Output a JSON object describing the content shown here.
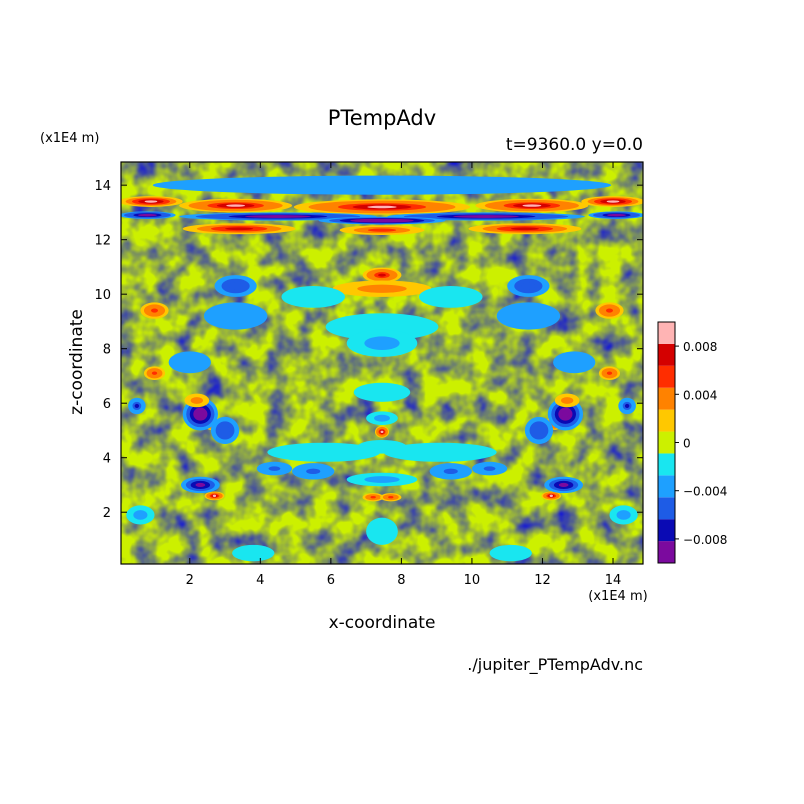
{
  "chart_data": {
    "type": "heatmap",
    "title": "PTempAdv",
    "subtitle": "t=9360.0 y=0.0",
    "xlabel": "x-coordinate",
    "ylabel": "z-coordinate",
    "x_unit": "(x1E4 m)",
    "y_unit": "(x1E4 m)",
    "xlim": [
      0.05,
      14.85
    ],
    "ylim": [
      0.1,
      14.85
    ],
    "x_ticks": [
      2,
      4,
      6,
      8,
      10,
      12,
      14
    ],
    "y_ticks": [
      2,
      4,
      6,
      8,
      10,
      12,
      14
    ],
    "colorbar": {
      "levels": [
        -0.01,
        -0.008,
        -0.006,
        -0.004,
        -0.002,
        0,
        0.002,
        0.004,
        0.006,
        0.008,
        0.01
      ],
      "colors": [
        "#7b0a9e",
        "#0a0ab4",
        "#1e5ce6",
        "#1ea0ff",
        "#19e6f0",
        "#ccf000",
        "#ffc800",
        "#ff8200",
        "#ff2d00",
        "#d40000",
        "#ffb4b4"
      ],
      "tick_values": [
        0.008,
        0.004,
        0,
        -0.004,
        -0.008
      ],
      "tick_labels": [
        "0.008",
        "0.004",
        "0",
        "−0.004",
        "−0.008"
      ]
    },
    "features": [
      {
        "x": 7.45,
        "z": 13.2,
        "sx": 2.5,
        "sz": 0.28,
        "v": 0.011
      },
      {
        "x": 3.3,
        "z": 13.25,
        "sx": 1.6,
        "sz": 0.25,
        "v": 0.011
      },
      {
        "x": 11.7,
        "z": 13.25,
        "sx": 1.6,
        "sz": 0.25,
        "v": 0.011
      },
      {
        "x": 0.9,
        "z": 13.4,
        "sx": 0.9,
        "sz": 0.2,
        "v": 0.01
      },
      {
        "x": 14.0,
        "z": 13.4,
        "sx": 0.9,
        "sz": 0.2,
        "v": 0.01
      },
      {
        "x": 7.45,
        "z": 14.0,
        "sx": 6.5,
        "sz": 0.35,
        "v": -0.004
      },
      {
        "x": 4.5,
        "z": 12.85,
        "sx": 2.8,
        "sz": 0.15,
        "v": -0.011
      },
      {
        "x": 10.4,
        "z": 12.85,
        "sx": 2.8,
        "sz": 0.15,
        "v": -0.011
      },
      {
        "x": 7.45,
        "z": 12.7,
        "sx": 1.8,
        "sz": 0.14,
        "v": -0.012
      },
      {
        "x": 0.8,
        "z": 12.9,
        "sx": 0.8,
        "sz": 0.14,
        "v": -0.011
      },
      {
        "x": 14.1,
        "z": 12.9,
        "sx": 0.8,
        "sz": 0.14,
        "v": -0.011
      },
      {
        "x": 3.4,
        "z": 12.4,
        "sx": 1.6,
        "sz": 0.2,
        "v": 0.008
      },
      {
        "x": 11.5,
        "z": 12.4,
        "sx": 1.6,
        "sz": 0.2,
        "v": 0.008
      },
      {
        "x": 7.45,
        "z": 12.35,
        "sx": 1.2,
        "sz": 0.18,
        "v": 0.006
      },
      {
        "x": 7.45,
        "z": 10.7,
        "sx": 0.55,
        "sz": 0.28,
        "v": 0.009
      },
      {
        "x": 7.45,
        "z": 10.2,
        "sx": 1.4,
        "sz": 0.3,
        "v": 0.004
      },
      {
        "x": 5.5,
        "z": 9.9,
        "sx": 0.9,
        "sz": 0.4,
        "v": -0.002
      },
      {
        "x": 9.4,
        "z": 9.9,
        "sx": 0.9,
        "sz": 0.4,
        "v": -0.002
      },
      {
        "x": 3.3,
        "z": 10.3,
        "sx": 0.6,
        "sz": 0.4,
        "v": -0.006
      },
      {
        "x": 11.6,
        "z": 10.3,
        "sx": 0.6,
        "sz": 0.4,
        "v": -0.006
      },
      {
        "x": 1.0,
        "z": 9.4,
        "sx": 0.4,
        "sz": 0.3,
        "v": 0.007
      },
      {
        "x": 13.9,
        "z": 9.4,
        "sx": 0.4,
        "sz": 0.3,
        "v": 0.007
      },
      {
        "x": 3.3,
        "z": 9.2,
        "sx": 0.9,
        "sz": 0.5,
        "v": -0.004
      },
      {
        "x": 11.6,
        "z": 9.2,
        "sx": 0.9,
        "sz": 0.5,
        "v": -0.004
      },
      {
        "x": 7.45,
        "z": 8.8,
        "sx": 1.6,
        "sz": 0.5,
        "v": -0.002
      },
      {
        "x": 7.45,
        "z": 8.2,
        "sx": 1.0,
        "sz": 0.5,
        "v": -0.003
      },
      {
        "x": 2.0,
        "z": 7.5,
        "sx": 0.6,
        "sz": 0.4,
        "v": -0.004
      },
      {
        "x": 12.9,
        "z": 7.5,
        "sx": 0.6,
        "sz": 0.4,
        "v": -0.004
      },
      {
        "x": 1.0,
        "z": 7.1,
        "sx": 0.3,
        "sz": 0.25,
        "v": 0.007
      },
      {
        "x": 13.9,
        "z": 7.1,
        "sx": 0.3,
        "sz": 0.25,
        "v": 0.007
      },
      {
        "x": 2.6,
        "z": 5.3,
        "sx": 0.22,
        "sz": 0.28,
        "v": 0.011
      },
      {
        "x": 12.35,
        "z": 5.3,
        "sx": 0.22,
        "sz": 0.28,
        "v": 0.011
      },
      {
        "x": 2.3,
        "z": 5.6,
        "sx": 0.5,
        "sz": 0.6,
        "v": -0.01
      },
      {
        "x": 12.65,
        "z": 5.6,
        "sx": 0.5,
        "sz": 0.6,
        "v": -0.01
      },
      {
        "x": 3.0,
        "z": 5.0,
        "sx": 0.4,
        "sz": 0.5,
        "v": -0.006
      },
      {
        "x": 11.9,
        "z": 5.0,
        "sx": 0.4,
        "sz": 0.5,
        "v": -0.006
      },
      {
        "x": 2.2,
        "z": 6.1,
        "sx": 0.35,
        "sz": 0.25,
        "v": 0.004
      },
      {
        "x": 12.7,
        "z": 6.1,
        "sx": 0.35,
        "sz": 0.25,
        "v": 0.004
      },
      {
        "x": 0.5,
        "z": 5.9,
        "sx": 0.25,
        "sz": 0.3,
        "v": -0.007
      },
      {
        "x": 14.4,
        "z": 5.9,
        "sx": 0.25,
        "sz": 0.3,
        "v": -0.007
      },
      {
        "x": 7.45,
        "z": 4.95,
        "sx": 0.2,
        "sz": 0.22,
        "v": 0.011
      },
      {
        "x": 7.45,
        "z": 5.45,
        "sx": 0.45,
        "sz": 0.25,
        "v": -0.003
      },
      {
        "x": 7.45,
        "z": 4.4,
        "sx": 0.7,
        "sz": 0.25,
        "v": -0.002
      },
      {
        "x": 5.8,
        "z": 4.2,
        "sx": 1.6,
        "sz": 0.35,
        "v": -0.002
      },
      {
        "x": 9.1,
        "z": 4.2,
        "sx": 1.6,
        "sz": 0.35,
        "v": -0.002
      },
      {
        "x": 7.45,
        "z": 6.4,
        "sx": 0.8,
        "sz": 0.35,
        "v": -0.002
      },
      {
        "x": 4.4,
        "z": 3.6,
        "sx": 0.5,
        "sz": 0.25,
        "v": -0.005
      },
      {
        "x": 10.5,
        "z": 3.6,
        "sx": 0.5,
        "sz": 0.25,
        "v": -0.005
      },
      {
        "x": 5.5,
        "z": 3.5,
        "sx": 0.6,
        "sz": 0.3,
        "v": -0.005
      },
      {
        "x": 9.4,
        "z": 3.5,
        "sx": 0.6,
        "sz": 0.3,
        "v": -0.005
      },
      {
        "x": 7.45,
        "z": 3.2,
        "sx": 1.0,
        "sz": 0.25,
        "v": -0.003
      },
      {
        "x": 7.2,
        "z": 2.55,
        "sx": 0.3,
        "sz": 0.15,
        "v": 0.007
      },
      {
        "x": 7.7,
        "z": 2.55,
        "sx": 0.3,
        "sz": 0.15,
        "v": 0.007
      },
      {
        "x": 2.7,
        "z": 2.6,
        "sx": 0.28,
        "sz": 0.16,
        "v": 0.011
      },
      {
        "x": 12.25,
        "z": 2.6,
        "sx": 0.28,
        "sz": 0.16,
        "v": 0.011
      },
      {
        "x": 2.3,
        "z": 3.0,
        "sx": 0.55,
        "sz": 0.3,
        "v": -0.008
      },
      {
        "x": 12.6,
        "z": 3.0,
        "sx": 0.55,
        "sz": 0.3,
        "v": -0.008
      },
      {
        "x": 0.6,
        "z": 1.9,
        "sx": 0.4,
        "sz": 0.35,
        "v": -0.003
      },
      {
        "x": 14.3,
        "z": 1.9,
        "sx": 0.4,
        "sz": 0.35,
        "v": -0.003
      },
      {
        "x": 7.45,
        "z": 1.3,
        "sx": 0.45,
        "sz": 0.5,
        "v": -0.002
      },
      {
        "x": 3.8,
        "z": 0.5,
        "sx": 0.6,
        "sz": 0.3,
        "v": -0.002
      },
      {
        "x": 11.1,
        "z": 0.5,
        "sx": 0.6,
        "sz": 0.3,
        "v": -0.002
      }
    ]
  },
  "footer": {
    "filename": "./jupiter_PTempAdv.nc"
  }
}
